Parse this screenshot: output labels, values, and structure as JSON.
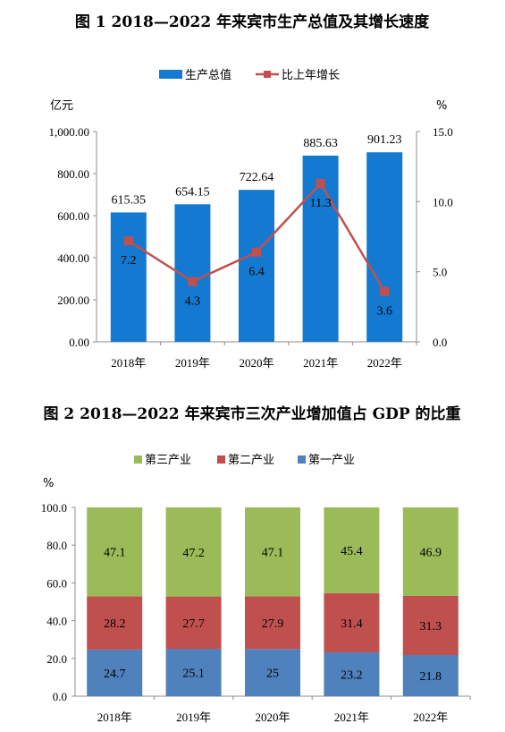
{
  "chart_data": [
    {
      "type": "bar",
      "title": "图 1    2018—2022 年来宾市生产总值及其增长速度",
      "categories": [
        "2018年",
        "2019年",
        "2020年",
        "2021年",
        "2022年"
      ],
      "series": [
        {
          "name": "生产总值",
          "values": [
            615.35,
            654.15,
            722.64,
            885.63,
            901.23
          ],
          "axis": "left",
          "kind": "bar",
          "color": "#1479d1"
        },
        {
          "name": "比上年增长",
          "values": [
            7.2,
            4.3,
            6.4,
            11.3,
            3.6
          ],
          "axis": "right",
          "kind": "line",
          "color": "#c0504d"
        }
      ],
      "value_labels": [
        "615.35",
        "654.15",
        "722.64",
        "885.63",
        "901.23"
      ],
      "growth_labels": [
        "7.2",
        "4.3",
        "6.4",
        "11.3",
        "3.6"
      ],
      "ylabel_left": "亿元",
      "ylabel_right": "%",
      "ylim_left": [
        0,
        1000
      ],
      "ylim_right": [
        0,
        15
      ],
      "yticks_left": [
        "0.00",
        "200.00",
        "400.00",
        "600.00",
        "800.00",
        "1,000.00"
      ],
      "yticks_right": [
        "0.0",
        "5.0",
        "10.0",
        "15.0"
      ],
      "legend_position": "top-center",
      "grid": false
    },
    {
      "type": "bar",
      "stacked": true,
      "title": "图 2    2018—2022 年来宾市三次产业增加值占 GDP 的比重",
      "categories": [
        "2018年",
        "2019年",
        "2020年",
        "2021年",
        "2022年"
      ],
      "series": [
        {
          "name": "第一产业",
          "values": [
            24.7,
            25.1,
            25.0,
            23.2,
            21.8
          ],
          "color": "#4f81bd"
        },
        {
          "name": "第二产业",
          "values": [
            28.2,
            27.7,
            27.9,
            31.4,
            31.3
          ],
          "color": "#c0504d"
        },
        {
          "name": "第三产业",
          "values": [
            47.1,
            47.2,
            47.1,
            45.4,
            46.9
          ],
          "color": "#9bbb59"
        }
      ],
      "legend_order": [
        "第三产业",
        "第二产业",
        "第一产业"
      ],
      "ylabel": "%",
      "ylim": [
        0,
        100
      ],
      "yticks": [
        "0.0",
        "20.0",
        "40.0",
        "60.0",
        "80.0",
        "100.0"
      ],
      "legend_position": "top-center",
      "grid": false
    }
  ]
}
